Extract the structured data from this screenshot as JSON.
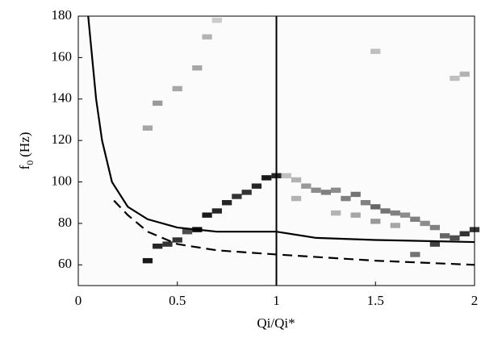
{
  "chart_data": {
    "type": "heatmap-lines",
    "xlabel": "Qi/Qi*",
    "ylabel_parts": [
      "f",
      "0",
      "(Hz)"
    ],
    "xlim": [
      0,
      2
    ],
    "ylim": [
      50,
      180
    ],
    "xticks": [
      0,
      0.5,
      1,
      1.5,
      2
    ],
    "yticks": [
      60,
      80,
      100,
      120,
      140,
      160,
      180
    ],
    "cells": {
      "x": [
        0.35,
        0.4,
        0.45,
        0.5,
        0.55,
        0.6,
        0.65,
        0.7,
        0.75,
        0.8,
        0.85,
        0.9,
        0.95,
        1.0,
        0.35,
        0.4,
        0.5,
        0.6,
        0.65,
        0.7,
        1.05,
        1.1,
        1.15,
        1.2,
        1.25,
        1.3,
        1.35,
        1.4,
        1.45,
        1.5,
        1.55,
        1.6,
        1.65,
        1.7,
        1.75,
        1.8,
        1.85,
        1.9,
        1.95,
        2.0,
        1.3,
        1.4,
        1.5,
        1.6,
        1.7,
        1.8,
        1.9,
        1.95,
        1.5,
        1.1
      ],
      "y": [
        62,
        69,
        70,
        72,
        76,
        77,
        84,
        86,
        90,
        93,
        95,
        98,
        102,
        103,
        126,
        138,
        145,
        155,
        170,
        178,
        103,
        101,
        98,
        96,
        95,
        96,
        92,
        94,
        90,
        88,
        86,
        85,
        84,
        82,
        80,
        78,
        74,
        73,
        75,
        77,
        85,
        84,
        81,
        79,
        65,
        70,
        150,
        152,
        163,
        92
      ],
      "z": [
        0.9,
        0.85,
        0.8,
        0.8,
        0.7,
        0.95,
        0.9,
        0.85,
        0.85,
        0.8,
        0.8,
        0.85,
        0.9,
        0.85,
        0.35,
        0.4,
        0.35,
        0.35,
        0.3,
        0.2,
        0.25,
        0.3,
        0.4,
        0.45,
        0.5,
        0.45,
        0.5,
        0.55,
        0.5,
        0.6,
        0.55,
        0.5,
        0.45,
        0.5,
        0.45,
        0.5,
        0.6,
        0.7,
        0.8,
        0.8,
        0.3,
        0.35,
        0.4,
        0.35,
        0.55,
        0.75,
        0.25,
        0.3,
        0.25,
        0.3
      ]
    },
    "series": [
      {
        "dash": false,
        "color": "#000000",
        "x": [
          0.05,
          0.07,
          0.09,
          0.12,
          0.17,
          0.25,
          0.35,
          0.5,
          0.7,
          1.0,
          1.2,
          1.5,
          2.0
        ],
        "values": [
          180,
          160,
          140,
          120,
          100,
          88,
          82,
          78,
          76,
          76,
          73,
          72,
          71
        ]
      },
      {
        "dash": true,
        "color": "#000000",
        "x": [
          0.18,
          0.25,
          0.35,
          0.5,
          0.7,
          1.0,
          1.5,
          2.0
        ],
        "values": [
          91,
          84,
          76,
          70,
          67,
          65,
          62,
          60
        ]
      }
    ],
    "vline_x": 1
  }
}
